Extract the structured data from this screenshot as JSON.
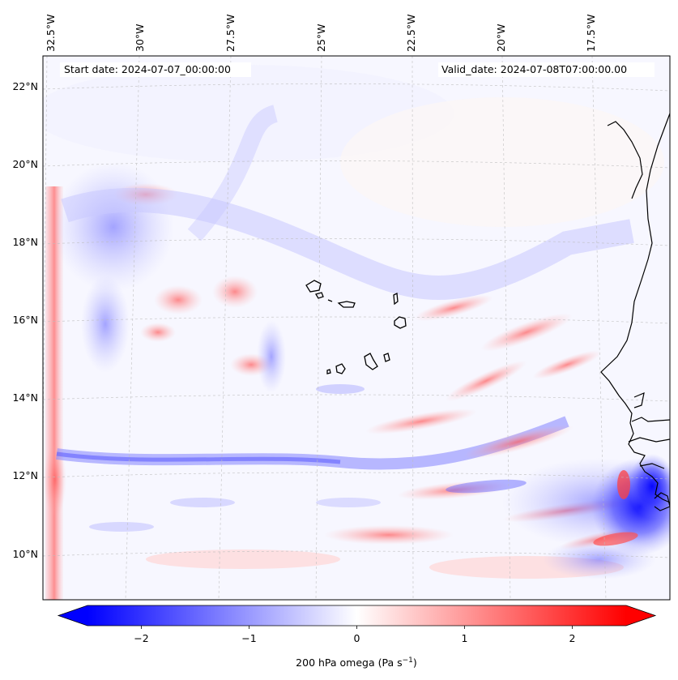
{
  "map": {
    "start_label": "Start date: 2024-07-07_00:00:00",
    "valid_label": "Valid_date: 2024-07-08T07:00:00.00",
    "lon_ticks": [
      "32.5°W",
      "30°W",
      "27.5°W",
      "25°W",
      "22.5°W",
      "20°W",
      "17.5°W"
    ],
    "lat_ticks": [
      "22°N",
      "20°N",
      "18°N",
      "16°N",
      "14°N",
      "12°N",
      "10°N"
    ],
    "field_colors": {
      "negative": "#0000ff",
      "neutral": "#ffffff",
      "positive": "#ff0000"
    },
    "coastline_color": "#000000"
  },
  "colorbar": {
    "ticks": [
      "−2",
      "−1",
      "0",
      "1",
      "2"
    ],
    "tick_values": [
      -2,
      -1,
      0,
      1,
      2
    ],
    "range": [
      -2.5,
      2.5
    ],
    "variable": "200 hPa omega",
    "unit": "Pa s",
    "unit_exp": "−1"
  }
}
